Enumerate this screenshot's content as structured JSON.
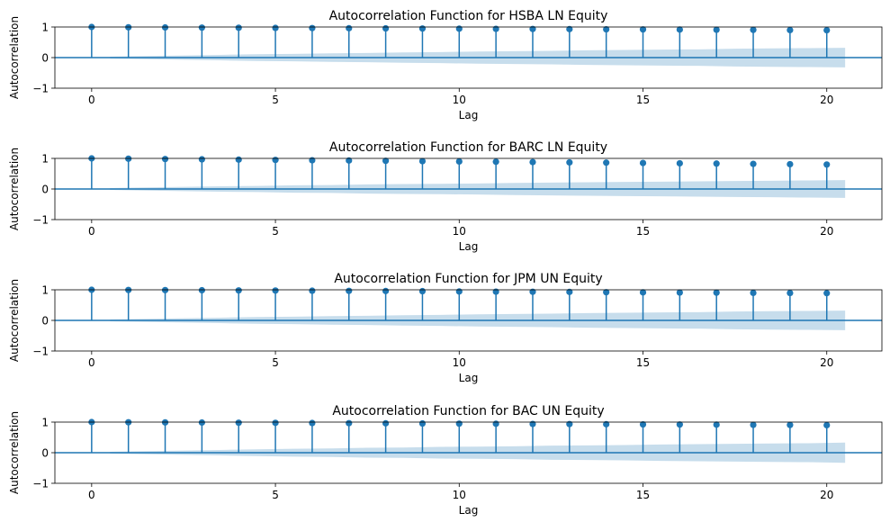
{
  "colors": {
    "stem": "#1f77b4",
    "band": "#1f77b4",
    "band_opacity": 0.25,
    "axis": "#000000",
    "background": "#ffffff"
  },
  "chart_data": [
    {
      "type": "stem",
      "title": "Autocorrelation Function for HSBA LN Equity",
      "xlabel": "Lag",
      "ylabel": "Autocorrelation",
      "xlim": [
        -1,
        21.5
      ],
      "ylim": [
        -1,
        1
      ],
      "xticks": [
        "0",
        "5",
        "10",
        "15",
        "20"
      ],
      "yticks": [
        "−1",
        "0",
        "1"
      ],
      "x": [
        0,
        1,
        2,
        3,
        4,
        5,
        6,
        7,
        8,
        9,
        10,
        11,
        12,
        13,
        14,
        15,
        16,
        17,
        18,
        19,
        20
      ],
      "values": [
        1.0,
        0.99,
        0.985,
        0.98,
        0.975,
        0.97,
        0.965,
        0.96,
        0.955,
        0.95,
        0.945,
        0.94,
        0.935,
        0.93,
        0.925,
        0.92,
        0.915,
        0.91,
        0.905,
        0.9,
        0.895
      ],
      "conf_band_x": [
        0.5,
        1.5,
        2.5,
        3.5,
        4.5,
        5.5,
        6.5,
        7.5,
        8.5,
        9.5,
        10.5,
        11.5,
        12.5,
        13.5,
        14.5,
        15.5,
        16.5,
        17.5,
        18.5,
        19.5,
        20.5
      ],
      "conf_band_upper": [
        0.03,
        0.05,
        0.07,
        0.09,
        0.11,
        0.12,
        0.14,
        0.15,
        0.17,
        0.18,
        0.2,
        0.21,
        0.22,
        0.24,
        0.25,
        0.26,
        0.27,
        0.29,
        0.3,
        0.31,
        0.32
      ]
    },
    {
      "type": "stem",
      "title": "Autocorrelation Function for BARC LN Equity",
      "xlabel": "Lag",
      "ylabel": "Autocorrelation",
      "xlim": [
        -1,
        21.5
      ],
      "ylim": [
        -1,
        1
      ],
      "xticks": [
        "0",
        "5",
        "10",
        "15",
        "20"
      ],
      "yticks": [
        "−1",
        "0",
        "1"
      ],
      "x": [
        0,
        1,
        2,
        3,
        4,
        5,
        6,
        7,
        8,
        9,
        10,
        11,
        12,
        13,
        14,
        15,
        16,
        17,
        18,
        19,
        20
      ],
      "values": [
        1.0,
        0.99,
        0.98,
        0.97,
        0.96,
        0.95,
        0.94,
        0.93,
        0.92,
        0.91,
        0.9,
        0.89,
        0.88,
        0.87,
        0.86,
        0.85,
        0.84,
        0.83,
        0.82,
        0.81,
        0.8
      ],
      "conf_band_x": [
        0.5,
        1.5,
        2.5,
        3.5,
        4.5,
        5.5,
        6.5,
        7.5,
        8.5,
        9.5,
        10.5,
        11.5,
        12.5,
        13.5,
        14.5,
        15.5,
        16.5,
        17.5,
        18.5,
        19.5,
        20.5
      ],
      "conf_band_upper": [
        0.03,
        0.05,
        0.07,
        0.09,
        0.1,
        0.12,
        0.13,
        0.15,
        0.16,
        0.17,
        0.18,
        0.2,
        0.21,
        0.22,
        0.23,
        0.24,
        0.25,
        0.26,
        0.27,
        0.28,
        0.29
      ]
    },
    {
      "type": "stem",
      "title": "Autocorrelation Function for JPM UN Equity",
      "xlabel": "Lag",
      "ylabel": "Autocorrelation",
      "xlim": [
        -1,
        21.5
      ],
      "ylim": [
        -1,
        1
      ],
      "xticks": [
        "0",
        "5",
        "10",
        "15",
        "20"
      ],
      "yticks": [
        "−1",
        "0",
        "1"
      ],
      "x": [
        0,
        1,
        2,
        3,
        4,
        5,
        6,
        7,
        8,
        9,
        10,
        11,
        12,
        13,
        14,
        15,
        16,
        17,
        18,
        19,
        20
      ],
      "values": [
        1.0,
        0.995,
        0.99,
        0.985,
        0.98,
        0.975,
        0.97,
        0.965,
        0.96,
        0.955,
        0.945,
        0.94,
        0.935,
        0.93,
        0.92,
        0.915,
        0.91,
        0.905,
        0.9,
        0.895,
        0.89
      ],
      "conf_band_x": [
        0.5,
        1.5,
        2.5,
        3.5,
        4.5,
        5.5,
        6.5,
        7.5,
        8.5,
        9.5,
        10.5,
        11.5,
        12.5,
        13.5,
        14.5,
        15.5,
        16.5,
        17.5,
        18.5,
        19.5,
        20.5
      ],
      "conf_band_upper": [
        0.03,
        0.05,
        0.07,
        0.09,
        0.11,
        0.12,
        0.14,
        0.15,
        0.17,
        0.18,
        0.2,
        0.21,
        0.22,
        0.24,
        0.25,
        0.26,
        0.27,
        0.29,
        0.3,
        0.31,
        0.32
      ]
    },
    {
      "type": "stem",
      "title": "Autocorrelation Function for BAC UN Equity",
      "xlabel": "Lag",
      "ylabel": "Autocorrelation",
      "xlim": [
        -1,
        21.5
      ],
      "ylim": [
        -1,
        1
      ],
      "xticks": [
        "0",
        "5",
        "10",
        "15",
        "20"
      ],
      "yticks": [
        "−1",
        "0",
        "1"
      ],
      "x": [
        0,
        1,
        2,
        3,
        4,
        5,
        6,
        7,
        8,
        9,
        10,
        11,
        12,
        13,
        14,
        15,
        16,
        17,
        18,
        19,
        20
      ],
      "values": [
        1.0,
        0.995,
        0.99,
        0.985,
        0.98,
        0.975,
        0.97,
        0.965,
        0.96,
        0.955,
        0.95,
        0.945,
        0.94,
        0.935,
        0.93,
        0.925,
        0.92,
        0.915,
        0.91,
        0.905,
        0.9
      ],
      "conf_band_x": [
        0.5,
        1.5,
        2.5,
        3.5,
        4.5,
        5.5,
        6.5,
        7.5,
        8.5,
        9.5,
        10.5,
        11.5,
        12.5,
        13.5,
        14.5,
        15.5,
        16.5,
        17.5,
        18.5,
        19.5,
        20.5
      ],
      "conf_band_upper": [
        0.03,
        0.05,
        0.07,
        0.09,
        0.11,
        0.13,
        0.14,
        0.16,
        0.17,
        0.19,
        0.2,
        0.21,
        0.23,
        0.24,
        0.25,
        0.27,
        0.28,
        0.29,
        0.3,
        0.31,
        0.33
      ]
    }
  ]
}
